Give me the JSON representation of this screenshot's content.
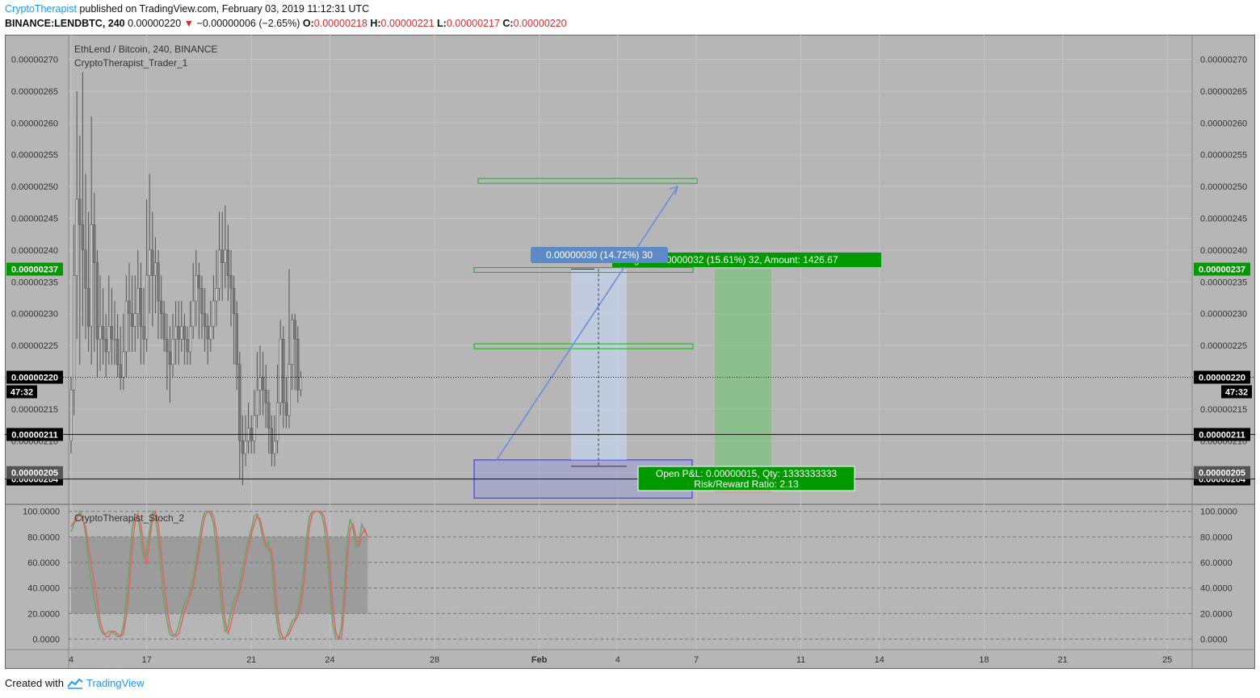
{
  "header": {
    "author": "CryptoTherapist",
    "published_text": "published on TradingView.com, February 03, 2019 11:12:31 UTC",
    "symbol": "BINANCE:LENDBTC, 240",
    "last_price": "0.00000220",
    "change_arrow": "▼",
    "change": "−0.00000006 (−2.65%)",
    "o_label": "O:",
    "o_value": "0.00000218",
    "h_label": "H:",
    "h_value": "0.00000221",
    "l_label": "L:",
    "l_value": "0.00000217",
    "c_label": "C:",
    "c_value": "0.00000220"
  },
  "footer": {
    "created_with": "Created with",
    "brand": "TradingView",
    "brand_icon": "tradingview-logo-icon"
  },
  "colors": {
    "background": "#b6b6b6",
    "up_candle": "#c8c8c8",
    "down_candle": "#7a7a7a",
    "price_line": "#111111",
    "green_box": "#00c400",
    "blue_box": "#2a2aff",
    "label_green": "#009900",
    "label_blue": "#5b8ac6",
    "stoch_green": "#6aa56a",
    "stoch_red": "#e06666"
  },
  "chart_data": [
    {
      "type": "candlestick",
      "title": "EthLend / Bitcoin, 240, BINANCE",
      "subtitle": "CryptoTherapist_Trader_1",
      "ylim": [
        2.01e-06,
        2.72e-06
      ],
      "y_ticks": [
        "0.00000270",
        "0.00000265",
        "0.00000260",
        "0.00000255",
        "0.00000250",
        "0.00000245",
        "0.00000240",
        "0.00000235",
        "0.00000230",
        "0.00000225",
        "0.00000220",
        "0.00000215",
        "0.00000210",
        "0.00000205"
      ],
      "x_ticks": [
        "4",
        "17",
        "21",
        "24",
        "28",
        "Feb",
        "4",
        "7",
        "11",
        "14",
        "18",
        "21",
        "25"
      ],
      "x_tick_bar_index": [
        0,
        26,
        62,
        89,
        125,
        161,
        188,
        215,
        251,
        278,
        314,
        341,
        377
      ],
      "candles": [
        [
          2.1e-06,
          2.18e-06,
          2.08e-06,
          2.2e-06
        ],
        [
          2.18e-06,
          2.36e-06,
          2.14e-06,
          2.44e-06
        ],
        [
          2.36e-06,
          2.48e-06,
          2.26e-06,
          2.65e-06
        ],
        [
          2.48e-06,
          2.44e-06,
          2.22e-06,
          2.58e-06
        ],
        [
          2.44e-06,
          2.4e-06,
          2.28e-06,
          2.68e-06
        ],
        [
          2.4e-06,
          2.34e-06,
          2.26e-06,
          2.52e-06
        ],
        [
          2.34e-06,
          2.28e-06,
          2.24e-06,
          2.46e-06
        ],
        [
          2.28e-06,
          2.44e-06,
          2.22e-06,
          2.61e-06
        ],
        [
          2.44e-06,
          2.38e-06,
          2.24e-06,
          2.49e-06
        ],
        [
          2.38e-06,
          2.26e-06,
          2.2e-06,
          2.4e-06
        ],
        [
          2.26e-06,
          2.28e-06,
          2.21e-06,
          2.36e-06
        ],
        [
          2.28e-06,
          2.26e-06,
          2.22e-06,
          2.34e-06
        ],
        [
          2.26e-06,
          2.24e-06,
          2.2e-06,
          2.3e-06
        ],
        [
          2.24e-06,
          2.28e-06,
          2.22e-06,
          2.36e-06
        ],
        [
          2.28e-06,
          2.26e-06,
          2.22e-06,
          2.34e-06
        ],
        [
          2.26e-06,
          2.26e-06,
          2.22e-06,
          2.32e-06
        ],
        [
          2.26e-06,
          2.22e-06,
          2.2e-06,
          2.3e-06
        ],
        [
          2.22e-06,
          2.2e-06,
          2.18e-06,
          2.28e-06
        ],
        [
          2.2e-06,
          2.24e-06,
          2.18e-06,
          2.3e-06
        ],
        [
          2.24e-06,
          2.32e-06,
          2.2e-06,
          2.36e-06
        ],
        [
          2.32e-06,
          2.3e-06,
          2.24e-06,
          2.38e-06
        ],
        [
          2.3e-06,
          2.28e-06,
          2.24e-06,
          2.36e-06
        ],
        [
          2.28e-06,
          2.3e-06,
          2.24e-06,
          2.36e-06
        ],
        [
          2.3e-06,
          2.34e-06,
          2.26e-06,
          2.4e-06
        ],
        [
          2.34e-06,
          2.28e-06,
          2.22e-06,
          2.38e-06
        ],
        [
          2.28e-06,
          2.26e-06,
          2.22e-06,
          2.34e-06
        ],
        [
          2.26e-06,
          2.36e-06,
          2.24e-06,
          2.48e-06
        ],
        [
          2.36e-06,
          2.4e-06,
          2.3e-06,
          2.52e-06
        ],
        [
          2.4e-06,
          2.36e-06,
          2.28e-06,
          2.46e-06
        ],
        [
          2.36e-06,
          2.38e-06,
          2.3e-06,
          2.42e-06
        ],
        [
          2.38e-06,
          2.32e-06,
          2.26e-06,
          2.4e-06
        ],
        [
          2.32e-06,
          2.3e-06,
          2.26e-06,
          2.36e-06
        ],
        [
          2.3e-06,
          2.26e-06,
          2.24e-06,
          2.32e-06
        ],
        [
          2.26e-06,
          2.24e-06,
          2.18e-06,
          2.3e-06
        ],
        [
          2.24e-06,
          2.22e-06,
          2.16e-06,
          2.28e-06
        ],
        [
          2.22e-06,
          2.26e-06,
          2.2e-06,
          2.3e-06
        ],
        [
          2.26e-06,
          2.28e-06,
          2.22e-06,
          2.32e-06
        ],
        [
          2.28e-06,
          2.26e-06,
          2.22e-06,
          2.32e-06
        ],
        [
          2.26e-06,
          2.28e-06,
          2.24e-06,
          2.32e-06
        ],
        [
          2.28e-06,
          2.26e-06,
          2.22e-06,
          2.3e-06
        ],
        [
          2.26e-06,
          2.24e-06,
          2.22e-06,
          2.28e-06
        ],
        [
          2.24e-06,
          2.28e-06,
          2.22e-06,
          2.32e-06
        ],
        [
          2.28e-06,
          2.32e-06,
          2.26e-06,
          2.38e-06
        ],
        [
          2.32e-06,
          2.36e-06,
          2.28e-06,
          2.4e-06
        ],
        [
          2.36e-06,
          2.34e-06,
          2.26e-06,
          2.38e-06
        ],
        [
          2.34e-06,
          2.3e-06,
          2.26e-06,
          2.36e-06
        ],
        [
          2.3e-06,
          2.28e-06,
          2.24e-06,
          2.34e-06
        ],
        [
          2.28e-06,
          2.26e-06,
          2.22e-06,
          2.3e-06
        ],
        [
          2.26e-06,
          2.28e-06,
          2.24e-06,
          2.32e-06
        ],
        [
          2.28e-06,
          2.32e-06,
          2.26e-06,
          2.36e-06
        ],
        [
          2.32e-06,
          2.34e-06,
          2.28e-06,
          2.4e-06
        ],
        [
          2.34e-06,
          2.4e-06,
          2.32e-06,
          2.46e-06
        ],
        [
          2.4e-06,
          2.38e-06,
          2.32e-06,
          2.46e-06
        ],
        [
          2.38e-06,
          2.4e-06,
          2.34e-06,
          2.47e-06
        ],
        [
          2.4e-06,
          2.36e-06,
          2.32e-06,
          2.44e-06
        ],
        [
          2.36e-06,
          2.34e-06,
          2.28e-06,
          2.4e-06
        ],
        [
          2.34e-06,
          2.3e-06,
          2.22e-06,
          2.36e-06
        ],
        [
          2.3e-06,
          2.22e-06,
          2.18e-06,
          2.32e-06
        ],
        [
          2.22e-06,
          2.1e-06,
          2.04e-06,
          2.24e-06
        ],
        [
          2.1e-06,
          2.08e-06,
          2.03e-06,
          2.14e-06
        ],
        [
          2.08e-06,
          2.1e-06,
          2.06e-06,
          2.14e-06
        ],
        [
          2.1e-06,
          2.12e-06,
          2.08e-06,
          2.16e-06
        ],
        [
          2.12e-06,
          2.1e-06,
          2.08e-06,
          2.14e-06
        ],
        [
          2.1e-06,
          2.14e-06,
          2.08e-06,
          2.18e-06
        ],
        [
          2.14e-06,
          2.18e-06,
          2.12e-06,
          2.24e-06
        ],
        [
          2.18e-06,
          2.2e-06,
          2.14e-06,
          2.25e-06
        ],
        [
          2.2e-06,
          2.18e-06,
          2.14e-06,
          2.24e-06
        ],
        [
          2.18e-06,
          2.16e-06,
          2.12e-06,
          2.22e-06
        ],
        [
          2.16e-06,
          2.12e-06,
          2.08e-06,
          2.18e-06
        ],
        [
          2.12e-06,
          2.08e-06,
          2.06e-06,
          2.14e-06
        ],
        [
          2.08e-06,
          2.1e-06,
          2.06e-06,
          2.14e-06
        ],
        [
          2.1e-06,
          2.16e-06,
          2.08e-06,
          2.22e-06
        ],
        [
          2.16e-06,
          2.26e-06,
          2.14e-06,
          2.29e-06
        ],
        [
          2.26e-06,
          2.16e-06,
          2.12e-06,
          2.28e-06
        ],
        [
          2.16e-06,
          2.14e-06,
          2.12e-06,
          2.2e-06
        ],
        [
          2.14e-06,
          2.22e-06,
          2.12e-06,
          2.37e-06
        ],
        [
          2.22e-06,
          2.29e-06,
          2.18e-06,
          2.3e-06
        ],
        [
          2.29e-06,
          2.26e-06,
          2.18e-06,
          2.3e-06
        ],
        [
          2.26e-06,
          2.18e-06,
          2.16e-06,
          2.28e-06
        ],
        [
          2.18e-06,
          2.2e-06,
          2.17e-06,
          2.21e-06
        ]
      ],
      "horizontal_lines": [
        {
          "price": 2.2e-06,
          "label": "0.00000220",
          "style": "dotted"
        },
        {
          "price": 2.11e-06,
          "label": "0.00000211",
          "style": "solid"
        },
        {
          "price": 2.04e-06,
          "label": "0.00000204",
          "style": "solid"
        }
      ],
      "price_labels": [
        {
          "price": 2.37e-06,
          "label": "0.00000237",
          "color": "green"
        },
        {
          "price": 2.05e-06,
          "label": "0.00000205",
          "color": "gray"
        }
      ],
      "countdown": "47:32",
      "target_zones": [
        {
          "low": 2.5e-06,
          "high": 2.51e-06
        },
        {
          "low": 2.36e-06,
          "high": 2.37e-06
        },
        {
          "low": 2.24e-06,
          "high": 2.25e-06
        }
      ],
      "entry_zone": {
        "low": 2.01e-06,
        "high": 2.07e-06
      },
      "measure_label": "0.00000030 (14.72%) 30",
      "target_label": "Target: 0.00000032 (15.61%) 32, Amount: 1426.67",
      "position_label_line1": "Open P&L: 0.00000015, Qty: 1333333333",
      "position_label_line2": "Risk/Reward Ratio: 2.13"
    },
    {
      "type": "line",
      "title": "CryptoTherapist_Stoch_2",
      "ylim": [
        0,
        100
      ],
      "y_ticks": [
        "100.0000",
        "80.0000",
        "60.0000",
        "40.0000",
        "20.0000",
        "0.0000"
      ],
      "band": [
        20,
        80
      ],
      "series": [
        {
          "color": "green",
          "values": [
            84,
            90,
            94,
            100,
            96,
            82,
            62,
            45,
            30,
            18,
            8,
            4,
            4,
            6,
            6,
            4,
            2,
            2,
            10,
            30,
            58,
            86,
            98,
            96,
            80,
            62,
            68,
            85,
            100,
            96,
            78,
            52,
            30,
            14,
            4,
            2,
            4,
            10,
            20,
            28,
            32,
            38,
            48,
            60,
            76,
            92,
            100,
            100,
            98,
            90,
            70,
            44,
            20,
            6,
            10,
            22,
            30,
            34,
            44,
            56,
            68,
            78,
            86,
            96,
            98,
            90,
            78,
            72,
            76,
            60,
            30,
            10,
            0,
            0,
            2,
            8,
            14,
            16,
            22,
            34,
            54,
            80,
            96,
            100,
            100,
            100,
            98,
            90,
            70,
            40,
            12,
            0,
            0,
            10,
            40,
            80,
            94,
            86,
            72,
            76,
            90,
            84,
            80
          ]
        },
        {
          "color": "red",
          "values": [
            88,
            92,
            96,
            98,
            94,
            88,
            72,
            58,
            44,
            30,
            14,
            6,
            2,
            2,
            6,
            6,
            4,
            2,
            4,
            18,
            40,
            70,
            92,
            98,
            90,
            72,
            58,
            76,
            94,
            100,
            90,
            68,
            44,
            24,
            10,
            4,
            2,
            4,
            12,
            22,
            28,
            34,
            42,
            54,
            68,
            84,
            96,
            100,
            100,
            96,
            84,
            60,
            34,
            14,
            4,
            12,
            24,
            30,
            38,
            48,
            60,
            72,
            82,
            90,
            96,
            94,
            84,
            74,
            70,
            70,
            48,
            20,
            6,
            0,
            2,
            4,
            10,
            14,
            18,
            26,
            42,
            66,
            88,
            98,
            100,
            100,
            100,
            96,
            84,
            58,
            26,
            6,
            0,
            2,
            24,
            62,
            86,
            90,
            80,
            72,
            82,
            86,
            80
          ]
        }
      ]
    }
  ]
}
